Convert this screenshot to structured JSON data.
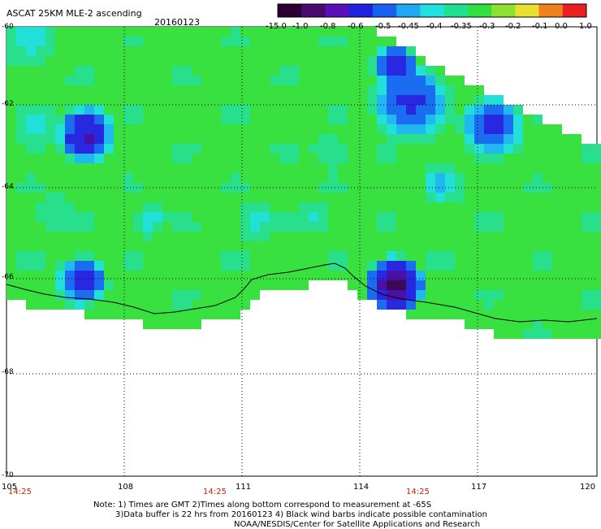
{
  "header": {
    "title": "ASCAT 25KM MLE-2 ascending",
    "date": "20160123"
  },
  "colorbar": {
    "ticks": [
      "-15.0",
      "-1.0",
      "-0.8",
      "-0.6",
      "-0.5",
      "-0.45",
      "-0.4",
      "-0.35",
      "-0.3",
      "-0.2",
      "-0.1",
      "0.0",
      "1.0"
    ],
    "colors": [
      "#2a0030",
      "#4a0a6e",
      "#5a10b8",
      "#2020e0",
      "#1a60f0",
      "#20a8f0",
      "#20e0e0",
      "#20e090",
      "#30e040",
      "#8ce030",
      "#e8e030",
      "#f08020",
      "#e82020"
    ]
  },
  "map": {
    "lat_labels": [
      "-60",
      "-62",
      "-64",
      "-66",
      "-68",
      "-70"
    ],
    "lon_labels": [
      "105",
      "108",
      "111",
      "114",
      "117",
      "120"
    ],
    "time_labels": [
      "14:25",
      "14:25",
      "14:25"
    ]
  },
  "notes": {
    "line1": "Note: 1) Times are GMT 2)Times along bottom correspond to measurement at -65S",
    "line2": "3)Data buffer is 22 hrs from 20160123 4) Black wind barbs indicate possible contamination",
    "line3": "NOAA/NESDIS/Center for Satellite Applications and Research"
  }
}
